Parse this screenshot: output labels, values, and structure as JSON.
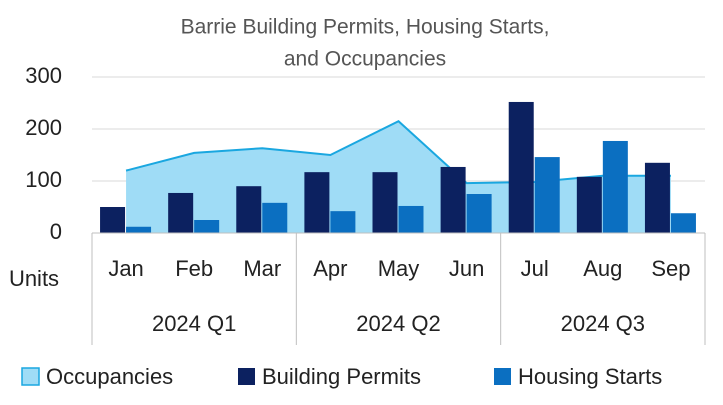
{
  "chart_data": {
    "type": "bar",
    "title": [
      "Barrie Building Permits, Housing Starts,",
      "and Occupancies"
    ],
    "ylabel": "Units",
    "groups": [
      {
        "label": "2024 Q1",
        "categories": [
          "Jan",
          "Feb",
          "Mar"
        ]
      },
      {
        "label": "2024 Q2",
        "categories": [
          "Apr",
          "May",
          "Jun"
        ]
      },
      {
        "label": "2024 Q3",
        "categories": [
          "Jul",
          "Aug",
          "Sep"
        ]
      }
    ],
    "series": [
      {
        "name": "Occupancies",
        "type": "area",
        "color": "#9fdcf6",
        "line_color": "#1aa7e0",
        "values": [
          120,
          154,
          163,
          150,
          215,
          96,
          98,
          110,
          110
        ]
      },
      {
        "name": "Building Permits",
        "type": "bar",
        "color": "#0c2160",
        "values": [
          50,
          77,
          90,
          117,
          117,
          127,
          252,
          108,
          135
        ]
      },
      {
        "name": "Housing Starts",
        "type": "bar",
        "color": "#0b6fc1",
        "values": [
          12,
          25,
          58,
          42,
          52,
          75,
          146,
          177,
          38
        ]
      }
    ],
    "ylim": [
      0,
      300
    ],
    "yticks": [
      0,
      100,
      200,
      300
    ],
    "grid": true,
    "legend": "bottom"
  }
}
